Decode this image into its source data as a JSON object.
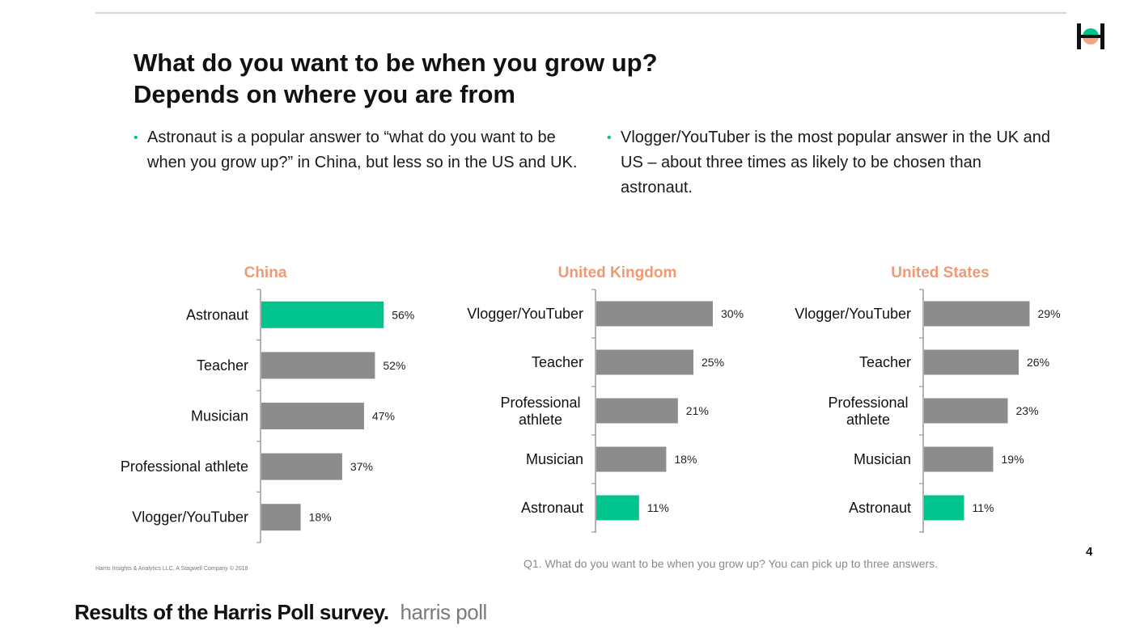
{
  "slide": {
    "title": "What do you want to be when you grow up? Depends on where you are from",
    "bullets": [
      "Astronaut is a popular answer to “what do you want to be when you grow up?” in China, but less so in the US and UK.",
      "Vlogger/YouTuber is the most popular answer in the UK and US – about three times as likely to be chosen than astronaut."
    ],
    "page_number": "4",
    "copyright": "Harris Insights & Analytics LLC, A Stagwell Company © 2018",
    "question": "Q1. What do you want to be when you grow up? You can pick up to three answers."
  },
  "caption": {
    "text": "Results of the Harris Poll survey.",
    "source": "harris poll"
  },
  "colors": {
    "bar": "#8c8c8c",
    "highlight": "#00c48c",
    "chart_title": "#f09a74",
    "accent_dot": "#00c48c"
  },
  "chart_data": [
    {
      "type": "bar",
      "orientation": "horizontal",
      "title": "China",
      "categories": [
        "Astronaut",
        "Teacher",
        "Musician",
        "Professional athlete",
        "Vlogger/YouTuber"
      ],
      "values": [
        56,
        52,
        47,
        37,
        18
      ],
      "value_labels": [
        "56%",
        "52%",
        "47%",
        "37%",
        "18%"
      ],
      "highlight": "Astronaut",
      "unit": "%"
    },
    {
      "type": "bar",
      "orientation": "horizontal",
      "title": "United Kingdom",
      "categories": [
        "Vlogger/YouTuber",
        "Teacher",
        "Professional athlete",
        "Musician",
        "Astronaut"
      ],
      "values": [
        30,
        25,
        21,
        18,
        11
      ],
      "value_labels": [
        "30%",
        "25%",
        "21%",
        "18%",
        "11%"
      ],
      "highlight": "Astronaut",
      "unit": "%"
    },
    {
      "type": "bar",
      "orientation": "horizontal",
      "title": "United States",
      "categories": [
        "Vlogger/YouTuber",
        "Teacher",
        "Professional athlete",
        "Musician",
        "Astronaut"
      ],
      "values": [
        29,
        26,
        23,
        19,
        11
      ],
      "value_labels": [
        "29%",
        "26%",
        "23%",
        "19%",
        "11%"
      ],
      "highlight": "Astronaut",
      "unit": "%"
    }
  ]
}
